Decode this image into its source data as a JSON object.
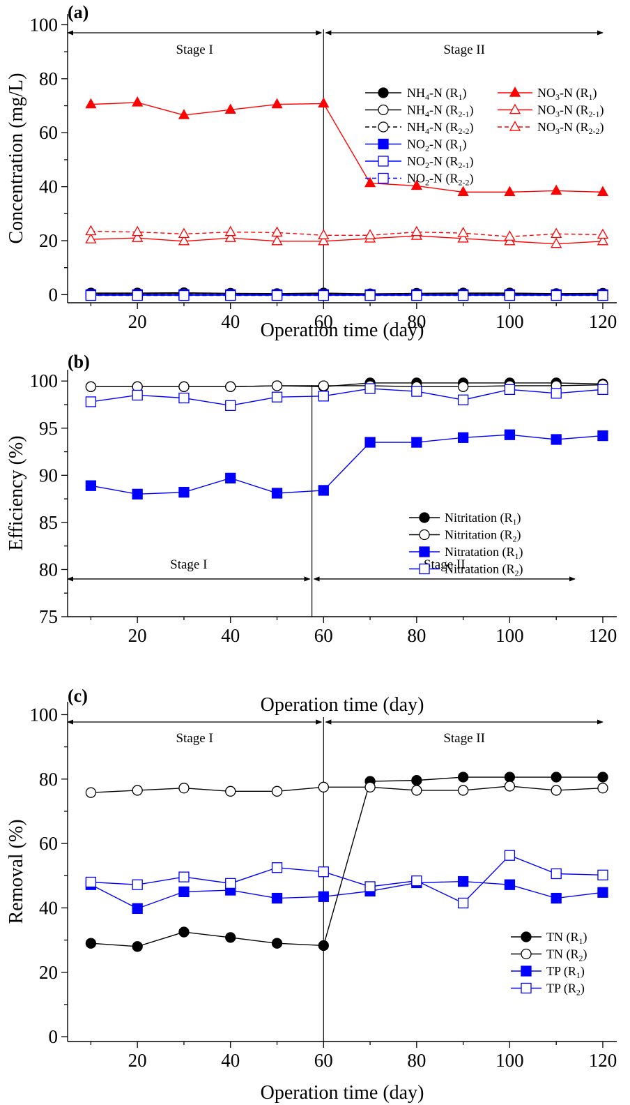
{
  "chart_data": [
    {
      "panel": "(a)",
      "type": "line",
      "xlabel": "Operation time (day)",
      "ylabel": "Concentration (mg/L)",
      "xlim": [
        5,
        123
      ],
      "ylim": [
        -3,
        104
      ],
      "xticks": [
        20,
        40,
        60,
        80,
        100,
        120
      ],
      "yticks": [
        0,
        20,
        40,
        60,
        80,
        100
      ],
      "grid": false,
      "legend_placement": "upper-right",
      "stage_divider_x": 60,
      "stages": [
        {
          "label": "Stage I",
          "from": 5,
          "to": 60
        },
        {
          "label": "Stage II",
          "from": 60,
          "to": 120
        }
      ],
      "x": [
        10,
        20,
        30,
        40,
        50,
        60,
        70,
        80,
        90,
        100,
        110,
        120
      ],
      "series": [
        {
          "name": "NH4-N (R1)",
          "label_main": "NH",
          "label_sub1": "4",
          "label_mid": "-N (R",
          "label_sub2": "1",
          "label_end": ")",
          "marker": "circle",
          "fill": "filled",
          "color": "#000000",
          "dash": "solid",
          "values": [
            0.6,
            0.6,
            0.7,
            0.5,
            0.4,
            0.6,
            0.3,
            0.5,
            0.6,
            0.6,
            0.4,
            0.5
          ]
        },
        {
          "name": "NH4-N (R2-1)",
          "label_main": "NH",
          "label_sub1": "4",
          "label_mid": "-N (R",
          "label_sub2": "2-1",
          "label_end": ")",
          "marker": "circle",
          "fill": "open",
          "color": "#000000",
          "dash": "solid",
          "values": [
            0.4,
            0.4,
            0.5,
            0.4,
            0.3,
            0.4,
            0.3,
            0.4,
            0.4,
            0.4,
            0.3,
            0.4
          ]
        },
        {
          "name": "NH4-N (R2-2)",
          "label_main": "NH",
          "label_sub1": "4",
          "label_mid": "-N (R",
          "label_sub2": "2-2",
          "label_end": ")",
          "marker": "circle",
          "fill": "open",
          "color": "#000000",
          "dash": "dashed",
          "values": [
            0.3,
            0.3,
            0.4,
            0.3,
            0.3,
            0.3,
            0.2,
            0.3,
            0.3,
            0.3,
            0.2,
            0.3
          ]
        },
        {
          "name": "NO2-N (R1)",
          "label_main": "NO",
          "label_sub1": "2",
          "label_mid": "-N (R",
          "label_sub2": "1",
          "label_end": ")",
          "marker": "square",
          "fill": "filled",
          "color": "#0000ff",
          "dash": "solid",
          "values": [
            0.0,
            0.0,
            0.0,
            0.0,
            0.0,
            0.0,
            0.0,
            0.0,
            0.0,
            0.0,
            0.0,
            0.0
          ]
        },
        {
          "name": "NO2-N (R2-1)",
          "label_main": "NO",
          "label_sub1": "2",
          "label_mid": "-N (R",
          "label_sub2": "2-1",
          "label_end": ")",
          "marker": "square",
          "fill": "open",
          "color": "#0000ff",
          "dash": "solid",
          "values": [
            -0.2,
            -0.2,
            -0.2,
            -0.2,
            -0.2,
            -0.2,
            -0.2,
            -0.2,
            -0.2,
            -0.2,
            -0.2,
            -0.2
          ]
        },
        {
          "name": "NO2-N (R2-2)",
          "label_main": "NO",
          "label_sub1": "2",
          "label_mid": "-N (R",
          "label_sub2": "2-2",
          "label_end": ")",
          "marker": "square",
          "fill": "open",
          "color": "#0000ff",
          "dash": "dashed",
          "values": [
            -0.3,
            -0.3,
            -0.3,
            -0.3,
            -0.3,
            -0.3,
            -0.3,
            -0.3,
            -0.3,
            -0.3,
            -0.3,
            -0.3
          ]
        },
        {
          "name": "NO3-N (R1)",
          "label_main": "NO",
          "label_sub1": "3",
          "label_mid": "-N (R",
          "label_sub2": "1",
          "label_end": ")",
          "marker": "triangle",
          "fill": "filled",
          "color": "#ff0000",
          "dash": "solid",
          "values": [
            70.5,
            71.2,
            66.5,
            68.5,
            70.5,
            70.8,
            41.3,
            40.3,
            38.0,
            38.0,
            38.5,
            38.0
          ]
        },
        {
          "name": "NO3-N (R2-1)",
          "label_main": "NO",
          "label_sub1": "3",
          "label_mid": "-N (R",
          "label_sub2": "2-1",
          "label_end": ")",
          "marker": "triangle",
          "fill": "open",
          "color": "#ff0000",
          "dash": "solid",
          "values": [
            20.5,
            21.0,
            19.8,
            21.0,
            19.8,
            19.8,
            20.8,
            21.8,
            20.8,
            19.8,
            18.8,
            19.8
          ]
        },
        {
          "name": "NO3-N (R2-2)",
          "label_main": "NO",
          "label_sub1": "3",
          "label_mid": "-N (R",
          "label_sub2": "2-2",
          "label_end": ")",
          "marker": "triangle",
          "fill": "open",
          "color": "#ff0000",
          "dash": "dashed",
          "values": [
            23.5,
            23.2,
            22.5,
            23.2,
            23.0,
            22.0,
            22.0,
            23.2,
            22.8,
            21.5,
            22.5,
            22.2
          ]
        }
      ]
    },
    {
      "panel": "(b)",
      "type": "line",
      "xlabel": "Operation time (day)",
      "ylabel": "Efficiency (%)",
      "xlim": [
        5,
        123
      ],
      "ylim": [
        75,
        101.2
      ],
      "xticks": [
        20,
        40,
        60,
        80,
        100,
        120
      ],
      "yticks": [
        75,
        80,
        85,
        90,
        95,
        100
      ],
      "grid": false,
      "legend_placement": "center-right",
      "stage_divider_x": 57.5,
      "stage_arrow_y": 79,
      "stages": [
        {
          "label": "Stage I",
          "from": 5,
          "to": 57.5
        },
        {
          "label": "Stage II",
          "from": 57.5,
          "to": 114
        }
      ],
      "x": [
        10,
        20,
        30,
        40,
        50,
        60,
        70,
        80,
        90,
        100,
        110,
        120
      ],
      "series": [
        {
          "name": "Nitritation (R1)",
          "label_main": "Nitritation (R",
          "label_sub2": "1",
          "label_end": ")",
          "marker": "circle",
          "fill": "filled",
          "color": "#000000",
          "dash": "solid",
          "values": [
            99.4,
            99.4,
            99.4,
            99.4,
            99.5,
            99.4,
            99.8,
            99.8,
            99.8,
            99.8,
            99.8,
            99.7
          ]
        },
        {
          "name": "Nitritation (R2)",
          "label_main": "Nitritation (R",
          "label_sub2": "2",
          "label_end": ")",
          "marker": "circle",
          "fill": "open",
          "color": "#000000",
          "dash": "solid",
          "values": [
            99.4,
            99.4,
            99.4,
            99.4,
            99.5,
            99.5,
            99.5,
            99.4,
            99.4,
            99.5,
            99.5,
            99.6
          ]
        },
        {
          "name": "Nitratation (R1)",
          "label_main": "Nitratation (R",
          "label_sub2": "1",
          "label_end": ")",
          "marker": "square",
          "fill": "filled",
          "color": "#0000ff",
          "dash": "solid",
          "values": [
            88.9,
            88.0,
            88.2,
            89.7,
            88.1,
            88.4,
            93.5,
            93.5,
            94.0,
            94.3,
            93.8,
            94.2
          ]
        },
        {
          "name": "Nitratation (R2)",
          "label_main": "Nitratation (R",
          "label_sub2": "2",
          "label_end": ")",
          "marker": "square",
          "fill": "open",
          "color": "#0000ff",
          "dash": "solid",
          "values": [
            97.8,
            98.5,
            98.2,
            97.4,
            98.3,
            98.4,
            99.2,
            98.9,
            98.0,
            99.1,
            98.7,
            99.1
          ]
        }
      ]
    },
    {
      "panel": "(c)",
      "type": "line",
      "xlabel": "Operation time (day)",
      "ylabel": "Removal (%)",
      "xlim": [
        5,
        123
      ],
      "ylim": [
        -1.5,
        104
      ],
      "xticks": [
        20,
        40,
        60,
        80,
        100,
        120
      ],
      "yticks": [
        0,
        20,
        40,
        60,
        80,
        100
      ],
      "grid": false,
      "legend_placement": "lower-right",
      "stage_divider_x": 60,
      "stages": [
        {
          "label": "Stage I",
          "from": 5,
          "to": 60
        },
        {
          "label": "Stage II",
          "from": 60,
          "to": 120
        }
      ],
      "x": [
        10,
        20,
        30,
        40,
        50,
        60,
        70,
        80,
        90,
        100,
        110,
        120
      ],
      "series": [
        {
          "name": "TN (R1)",
          "label_main": "TN (R",
          "label_sub2": "1",
          "label_end": ")",
          "marker": "circle",
          "fill": "filled",
          "color": "#000000",
          "dash": "solid",
          "values": [
            29.0,
            28.0,
            32.5,
            30.8,
            29.0,
            28.3,
            79.3,
            79.6,
            80.6,
            80.6,
            80.6,
            80.6
          ]
        },
        {
          "name": "TN (R2)",
          "label_main": "TN (R",
          "label_sub2": "2",
          "label_end": ")",
          "marker": "circle",
          "fill": "open",
          "color": "#000000",
          "dash": "solid",
          "values": [
            75.8,
            76.5,
            77.2,
            76.2,
            76.2,
            77.5,
            77.5,
            76.5,
            76.5,
            77.8,
            76.5,
            77.2
          ]
        },
        {
          "name": "TP (R1)",
          "label_main": "TP (R",
          "label_sub2": "1",
          "label_end": ")",
          "marker": "square",
          "fill": "filled",
          "color": "#0000ff",
          "dash": "solid",
          "values": [
            47.2,
            39.8,
            45.0,
            45.5,
            43.0,
            43.5,
            45.2,
            47.8,
            48.2,
            47.2,
            43.0,
            44.8
          ]
        },
        {
          "name": "TP (R2)",
          "label_main": "TP (R",
          "label_sub2": "2",
          "label_end": ")",
          "marker": "square",
          "fill": "open",
          "color": "#0000ff",
          "dash": "solid",
          "values": [
            48.0,
            47.2,
            49.6,
            47.6,
            52.5,
            51.2,
            46.6,
            48.4,
            41.5,
            56.3,
            50.6,
            50.2
          ]
        }
      ]
    }
  ]
}
